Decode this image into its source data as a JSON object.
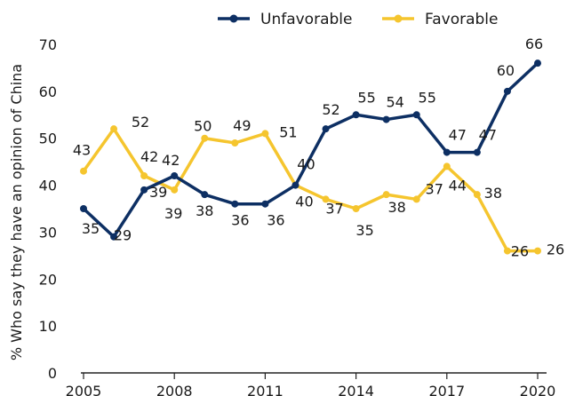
{
  "chart_data": {
    "type": "line",
    "title": "",
    "xlabel": "",
    "ylabel": "% Who say they have an opinion of China",
    "x": [
      2005,
      2006,
      2007,
      2008,
      2009,
      2010,
      2011,
      2012,
      2013,
      2014,
      2015,
      2016,
      2017,
      2018,
      2019,
      2020
    ],
    "xlim": [
      2005,
      2020
    ],
    "xticks": [
      "2005",
      "2008",
      "2011",
      "2014",
      "2017",
      "2020"
    ],
    "ylim": [
      0,
      70
    ],
    "yticks": [
      "0",
      "10",
      "20",
      "30",
      "40",
      "50",
      "60",
      "70"
    ],
    "grid": false,
    "legend_position": "top",
    "series": [
      {
        "name": "Unfavorable",
        "color": "#0d2f63",
        "values": [
          35,
          29,
          39,
          42,
          38,
          36,
          36,
          40,
          52,
          55,
          54,
          55,
          47,
          47,
          60,
          66
        ],
        "labels": [
          "35",
          "29",
          "39",
          "42",
          "38",
          "36",
          "36",
          "40",
          "52",
          "55",
          "54",
          "55",
          "47",
          "47",
          "60",
          "66"
        ]
      },
      {
        "name": "Favorable",
        "color": "#f5c52e",
        "values": [
          43,
          52,
          42,
          39,
          50,
          49,
          51,
          40,
          37,
          35,
          38,
          37,
          44,
          38,
          26,
          26
        ],
        "labels": [
          "43",
          "52",
          "42",
          "39",
          "50",
          "49",
          "51",
          "40",
          "37",
          "35",
          "38",
          "37",
          "44",
          "38",
          "26",
          "26"
        ]
      }
    ]
  }
}
